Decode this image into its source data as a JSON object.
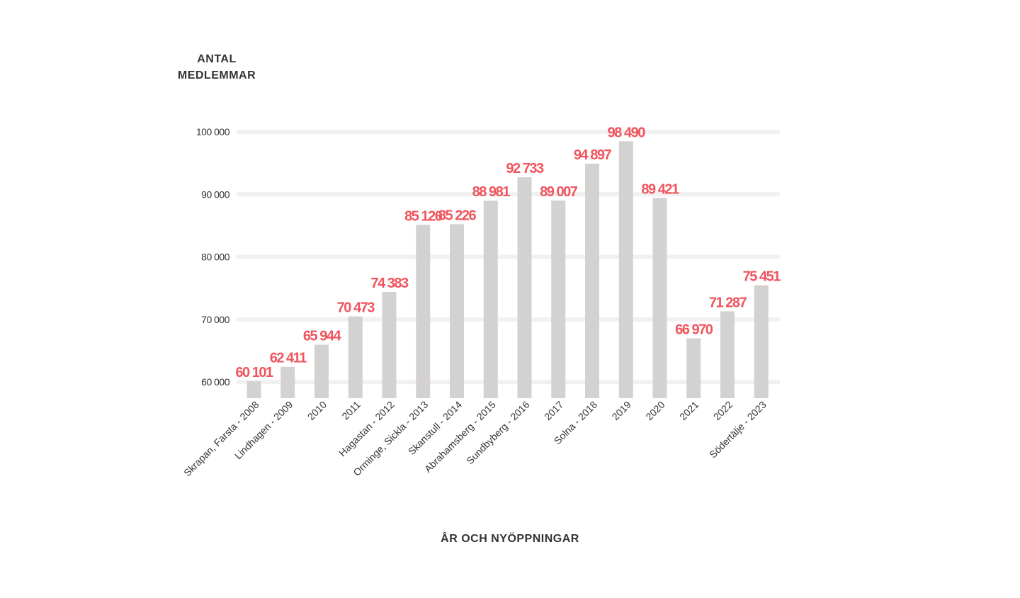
{
  "chart_data": {
    "type": "bar",
    "ylabel_lines": [
      "ANTAL",
      "MEDLEMMAR"
    ],
    "xlabel": "ÅR OCH NYÖPPNINGAR",
    "ylim": [
      57500,
      101000
    ],
    "yticks": [
      60000,
      70000,
      80000,
      90000,
      100000
    ],
    "ytick_labels": [
      "60 000",
      "70 000",
      "80 000",
      "90 000",
      "100 000"
    ],
    "grid": true,
    "categories": [
      "Skrapan, Farsta - 2008",
      "Lindhagen - 2009",
      "2010",
      "2011",
      "Hagastan - 2012",
      "Orminge, Sickla - 2013",
      "Skanstull - 2014",
      "Abrahamsberg - 2015",
      "Sundbyberg - 2016",
      "2017",
      "Solna - 2018",
      "2019",
      "2020",
      "2021",
      "2022",
      "Södertälje - 2023"
    ],
    "values": [
      60101,
      62411,
      65944,
      70473,
      74383,
      85126,
      85226,
      88981,
      92733,
      89007,
      94897,
      98490,
      89421,
      66970,
      71287,
      75451
    ],
    "value_labels": [
      "60 101",
      "62 411",
      "65 944",
      "70 473",
      "74 383",
      "85 126",
      "85 226",
      "88 981",
      "92 733",
      "89 007",
      "94 897",
      "98 490",
      "89 421",
      "66 970",
      "71 287",
      "75 451"
    ],
    "colors": {
      "bar": "#d3d2d0",
      "value_label": "#f0545d",
      "grid": "#f1f1f1",
      "text": "#333333"
    }
  }
}
